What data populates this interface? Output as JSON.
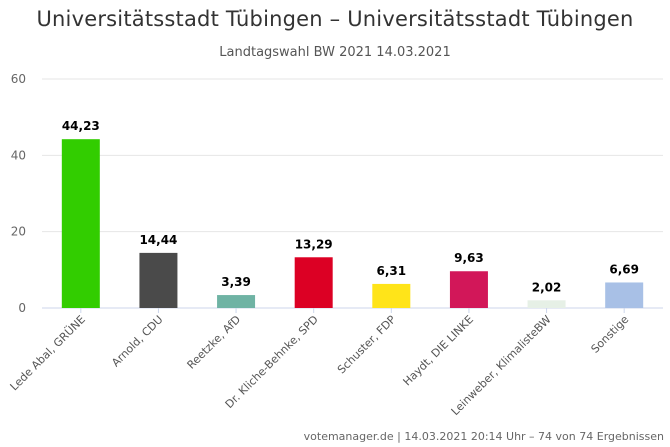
{
  "title": "Universitätsstadt Tübingen – Universitätsstadt Tübingen",
  "subtitle": "Landtagswahl BW 2021 14.03.2021",
  "footer": "votemanager.de | 14.03.2021 20:14 Uhr – 74 von 74 Ergebnissen",
  "chart_data": {
    "type": "bar",
    "categories": [
      "Lede Abal, GRÜNE",
      "Arnold, CDU",
      "Reetzke, AfD",
      "Dr. Kliche-Behnke, SPD",
      "Schuster, FDP",
      "Haydt, DIE LINKE",
      "Leinweber, KlimalisteBW",
      "Sonstige"
    ],
    "values": [
      44.23,
      14.44,
      3.39,
      13.29,
      6.31,
      9.63,
      2.02,
      6.69
    ],
    "value_labels": [
      "44,23",
      "14,44",
      "3,39",
      "13,29",
      "6,31",
      "9,63",
      "2,02",
      "6,69"
    ],
    "colors": [
      "#32cd00",
      "#4a4a4a",
      "#6fb3a4",
      "#dc0024",
      "#ffe419",
      "#d21759",
      "#e6f0e6",
      "#a8c0e6"
    ],
    "ylim": [
      0,
      60
    ],
    "yticks": [
      0,
      20,
      40,
      60
    ],
    "grid": true,
    "xlabel": "",
    "ylabel": ""
  }
}
